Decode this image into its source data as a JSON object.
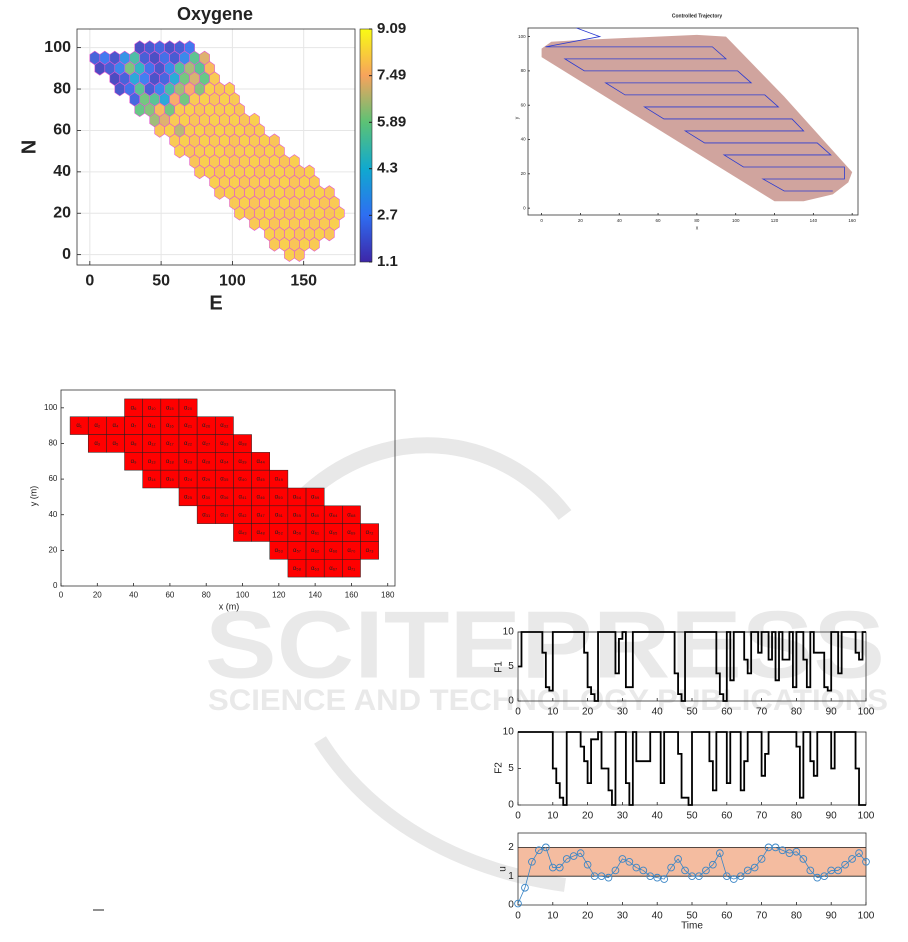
{
  "watermark": {
    "title": "SCITEPRESS",
    "subtitle": "SCIENCE AND TECHNOLOGY PUBLICATIONS"
  },
  "chart_data": [
    {
      "type": "hexmap",
      "title": "Oxygene",
      "xlabel": "E",
      "ylabel": "N",
      "xlim": [
        -9,
        186
      ],
      "ylim": [
        -5,
        109
      ],
      "xticks": [
        0,
        50,
        100,
        150
      ],
      "yticks": [
        0,
        20,
        40,
        60,
        80,
        100
      ],
      "grid": true,
      "clim": [
        1.1,
        9.09
      ],
      "cticks": [
        1.1,
        2.7,
        4.3,
        5.89,
        7.49,
        9.09
      ],
      "colormap": [
        "#3d26a8",
        "#2e6ef2",
        "#10a9cf",
        "#5cc275",
        "#f7a35c",
        "#f9fb14"
      ],
      "edgecolor": "#e05ad0",
      "rows": [
        {
          "y": 100,
          "x": 35,
          "values": [
            1.6,
            1.9,
            2.2,
            1.7,
            2.0,
            2.6
          ]
        },
        {
          "y": 95,
          "x": 3.5,
          "values": [
            2.1,
            2.6,
            1.8,
            3.4,
            5.2,
            2.0,
            1.6,
            2.4,
            1.9,
            3.1,
            5.6,
            7.2
          ]
        },
        {
          "y": 90,
          "x": 7,
          "values": [
            1.5,
            2.0,
            3.0,
            6.1,
            4.6,
            2.5,
            1.8,
            3.2,
            5.3,
            6.6,
            5.6,
            7.8
          ]
        },
        {
          "y": 85,
          "x": 17.5,
          "values": [
            1.5,
            2.1,
            4.0,
            2.8,
            1.7,
            2.2,
            4.1,
            6.0,
            7.1,
            5.8,
            8.1
          ]
        },
        {
          "y": 80,
          "x": 21,
          "values": [
            1.8,
            2.5,
            5.5,
            2.0,
            3.0,
            5.1,
            6.5,
            7.5,
            6.2,
            8.2,
            8.0,
            8.2
          ]
        },
        {
          "y": 75,
          "x": 31.5,
          "values": [
            2.2,
            6.0,
            5.5,
            4.0,
            7.5,
            6.0,
            8.1,
            8.2,
            8.0,
            8.2,
            8.1
          ]
        },
        {
          "y": 70,
          "x": 35,
          "values": [
            5.8,
            6.2,
            7.8,
            6.0,
            8.1,
            8.2,
            8.0,
            8.2,
            8.1,
            8.2,
            8.0
          ]
        },
        {
          "y": 65,
          "x": 45.5,
          "values": [
            6.5,
            7.2,
            8.1,
            8.2,
            8.0,
            8.1,
            8.2,
            8.1,
            8.2,
            8.0,
            8.2
          ]
        },
        {
          "y": 60,
          "x": 49,
          "values": [
            8.0,
            8.2,
            6.8,
            8.1,
            8.2,
            8.0,
            8.2,
            8.1,
            8.2,
            8.0,
            8.1
          ]
        },
        {
          "y": 55,
          "x": 59.5,
          "values": [
            8.1,
            8.2,
            8.0,
            8.2,
            8.1,
            8.2,
            8.0,
            8.2,
            8.1,
            8.2,
            8.0
          ]
        },
        {
          "y": 50,
          "x": 63,
          "values": [
            8.2,
            8.0,
            8.1,
            8.2,
            8.2,
            8.0,
            8.1,
            8.2,
            8.0,
            8.2,
            8.1
          ]
        },
        {
          "y": 45,
          "x": 73.5,
          "values": [
            8.0,
            8.2,
            8.1,
            8.2,
            8.0,
            8.1,
            8.2,
            8.1,
            8.2,
            8.0,
            8.2
          ]
        },
        {
          "y": 40,
          "x": 77,
          "values": [
            8.1,
            8.2,
            8.0,
            8.2,
            8.1,
            8.2,
            8.0,
            8.1,
            8.2,
            8.1,
            8.0,
            8.2
          ]
        },
        {
          "y": 35,
          "x": 87.5,
          "values": [
            8.2,
            8.1,
            8.2,
            8.0,
            8.1,
            8.2,
            8.1,
            8.2,
            8.0,
            8.2,
            8.1
          ]
        },
        {
          "y": 30,
          "x": 91,
          "values": [
            8.0,
            8.2,
            8.1,
            8.2,
            8.0,
            8.1,
            8.2,
            8.0,
            8.2,
            8.1,
            8.2,
            8.0
          ]
        },
        {
          "y": 25,
          "x": 101.5,
          "values": [
            8.1,
            8.2,
            8.0,
            8.2,
            8.1,
            8.2,
            8.0,
            8.1,
            8.2,
            8.0,
            8.1
          ]
        },
        {
          "y": 20,
          "x": 105,
          "values": [
            8.2,
            8.0,
            8.1,
            8.2,
            8.1,
            8.0,
            8.2,
            8.1,
            8.2,
            8.0,
            8.2
          ]
        },
        {
          "y": 15,
          "x": 115.5,
          "values": [
            8.1,
            8.2,
            8.0,
            8.2,
            8.1,
            8.2,
            8.0,
            8.1,
            8.2
          ]
        },
        {
          "y": 10,
          "x": 126,
          "values": [
            8.2,
            8.1,
            8.2,
            8.0,
            8.1,
            8.2,
            8.0
          ]
        },
        {
          "y": 5,
          "x": 129.5,
          "values": [
            8.1,
            8.2,
            8.0,
            8.2,
            8.1
          ]
        },
        {
          "y": 0,
          "x": 140,
          "values": [
            8.2,
            8.0
          ]
        }
      ]
    },
    {
      "type": "trajectory",
      "title": "Controlled Trajectory",
      "xlabel": "x",
      "ylabel": "y",
      "xlim": [
        -7,
        163
      ],
      "ylim": [
        -4,
        105
      ],
      "xticks": [
        0,
        20,
        40,
        60,
        80,
        100,
        120,
        140,
        160
      ],
      "yticks": [
        0,
        20,
        40,
        60,
        80,
        100
      ],
      "region": {
        "color": "#c8948d",
        "x": [
          0,
          5,
          20,
          80,
          95,
          125,
          160,
          158,
          150,
          135,
          120,
          0
        ],
        "y": [
          93,
          97,
          98,
          101,
          100,
          65,
          21,
          15,
          8,
          4,
          4,
          88
        ]
      },
      "path": {
        "color": "#2b3bd1",
        "x": [
          18,
          30,
          2,
          88,
          95,
          12,
          22,
          101,
          108,
          33,
          43,
          115,
          122,
          53,
          63,
          129,
          135,
          74,
          84,
          142,
          149,
          94,
          104,
          156,
          156,
          114,
          125,
          150
        ],
        "y": [
          105,
          100,
          94,
          94,
          87,
          87,
          80,
          80,
          73,
          73,
          66,
          66,
          59,
          59,
          52,
          52,
          45,
          45,
          38,
          38,
          31,
          31,
          24,
          24,
          17,
          17,
          10,
          10
        ]
      }
    },
    {
      "type": "cells",
      "xlabel": "x (m)",
      "ylabel": "y (m)",
      "xlim": [
        0,
        184
      ],
      "ylim": [
        0,
        110
      ],
      "xticks": [
        0,
        20,
        40,
        60,
        80,
        100,
        120,
        140,
        160,
        180
      ],
      "yticks": [
        0,
        20,
        40,
        60,
        80,
        100
      ],
      "color": "#ff0000",
      "cells": [
        {
          "x": 10,
          "y": 90,
          "label": "α₁"
        },
        {
          "x": 20,
          "y": 90,
          "label": "α₂"
        },
        {
          "x": 20,
          "y": 80,
          "label": "α₃"
        },
        {
          "x": 30,
          "y": 90,
          "label": "α₄"
        },
        {
          "x": 30,
          "y": 80,
          "label": "α₅"
        },
        {
          "x": 40,
          "y": 100,
          "label": "α₆"
        },
        {
          "x": 40,
          "y": 90,
          "label": "α₇"
        },
        {
          "x": 40,
          "y": 80,
          "label": "α₈"
        },
        {
          "x": 40,
          "y": 70,
          "label": "α₉"
        },
        {
          "x": 50,
          "y": 100,
          "label": "α₁₀"
        },
        {
          "x": 50,
          "y": 90,
          "label": "α₁₁"
        },
        {
          "x": 50,
          "y": 80,
          "label": "α₁₂"
        },
        {
          "x": 50,
          "y": 70,
          "label": "α₁₃"
        },
        {
          "x": 50,
          "y": 60,
          "label": "α₁₄"
        },
        {
          "x": 60,
          "y": 100,
          "label": "α₁₅"
        },
        {
          "x": 60,
          "y": 90,
          "label": "α₁₆"
        },
        {
          "x": 60,
          "y": 80,
          "label": "α₁₇"
        },
        {
          "x": 60,
          "y": 70,
          "label": "α₁₈"
        },
        {
          "x": 60,
          "y": 60,
          "label": "α₁₉"
        },
        {
          "x": 70,
          "y": 100,
          "label": "α₂₀"
        },
        {
          "x": 70,
          "y": 90,
          "label": "α₂₁"
        },
        {
          "x": 70,
          "y": 80,
          "label": "α₂₂"
        },
        {
          "x": 70,
          "y": 70,
          "label": "α₂₃"
        },
        {
          "x": 70,
          "y": 60,
          "label": "α₂₄"
        },
        {
          "x": 70,
          "y": 50,
          "label": "α₂₅"
        },
        {
          "x": 80,
          "y": 90,
          "label": "α₂₆"
        },
        {
          "x": 80,
          "y": 80,
          "label": "α₂₇"
        },
        {
          "x": 80,
          "y": 70,
          "label": "α₂₈"
        },
        {
          "x": 80,
          "y": 60,
          "label": "α₂₉"
        },
        {
          "x": 80,
          "y": 50,
          "label": "α₃₀"
        },
        {
          "x": 80,
          "y": 40,
          "label": "α₃₁"
        },
        {
          "x": 90,
          "y": 90,
          "label": "α₃₂"
        },
        {
          "x": 90,
          "y": 80,
          "label": "α₃₃"
        },
        {
          "x": 90,
          "y": 70,
          "label": "α₃₄"
        },
        {
          "x": 90,
          "y": 60,
          "label": "α₃₅"
        },
        {
          "x": 90,
          "y": 50,
          "label": "α₃₆"
        },
        {
          "x": 90,
          "y": 40,
          "label": "α₃₇"
        },
        {
          "x": 100,
          "y": 80,
          "label": "α₃₈"
        },
        {
          "x": 100,
          "y": 70,
          "label": "α₃₉"
        },
        {
          "x": 100,
          "y": 60,
          "label": "α₄₀"
        },
        {
          "x": 100,
          "y": 50,
          "label": "α₄₁"
        },
        {
          "x": 100,
          "y": 40,
          "label": "α₄₂"
        },
        {
          "x": 100,
          "y": 30,
          "label": "α₄₃"
        },
        {
          "x": 110,
          "y": 70,
          "label": "α₄₄"
        },
        {
          "x": 110,
          "y": 60,
          "label": "α₄₅"
        },
        {
          "x": 110,
          "y": 50,
          "label": "α₄₆"
        },
        {
          "x": 110,
          "y": 40,
          "label": "α₄₇"
        },
        {
          "x": 110,
          "y": 30,
          "label": "α₄₈"
        },
        {
          "x": 120,
          "y": 60,
          "label": "α₄₉"
        },
        {
          "x": 120,
          "y": 50,
          "label": "α₅₀"
        },
        {
          "x": 120,
          "y": 40,
          "label": "α₅₁"
        },
        {
          "x": 120,
          "y": 30,
          "label": "α₅₂"
        },
        {
          "x": 120,
          "y": 20,
          "label": "α₅₃"
        },
        {
          "x": 130,
          "y": 50,
          "label": "α₅₄"
        },
        {
          "x": 130,
          "y": 40,
          "label": "α₅₅"
        },
        {
          "x": 130,
          "y": 30,
          "label": "α₅₆"
        },
        {
          "x": 130,
          "y": 20,
          "label": "α₅₇"
        },
        {
          "x": 130,
          "y": 10,
          "label": "α₅₈"
        },
        {
          "x": 140,
          "y": 50,
          "label": "α₅₉"
        },
        {
          "x": 140,
          "y": 40,
          "label": "α₆₀"
        },
        {
          "x": 140,
          "y": 30,
          "label": "α₆₁"
        },
        {
          "x": 140,
          "y": 20,
          "label": "α₆₂"
        },
        {
          "x": 140,
          "y": 10,
          "label": "α₆₃"
        },
        {
          "x": 150,
          "y": 40,
          "label": "α₆₄"
        },
        {
          "x": 150,
          "y": 30,
          "label": "α₆₅"
        },
        {
          "x": 150,
          "y": 20,
          "label": "α₆₆"
        },
        {
          "x": 150,
          "y": 10,
          "label": "α₆₇"
        },
        {
          "x": 160,
          "y": 40,
          "label": "α₆₈"
        },
        {
          "x": 160,
          "y": 30,
          "label": "α₆₉"
        },
        {
          "x": 160,
          "y": 20,
          "label": "α₇₀"
        },
        {
          "x": 160,
          "y": 10,
          "label": "α₇₁"
        },
        {
          "x": 170,
          "y": 30,
          "label": "α₇₂"
        },
        {
          "x": 170,
          "y": 20,
          "label": "α₇₃"
        }
      ]
    },
    {
      "type": "step",
      "ylabel": "F1",
      "xlim": [
        0,
        100
      ],
      "ylim": [
        0,
        10
      ],
      "xticks": [
        0,
        10,
        20,
        30,
        40,
        50,
        60,
        70,
        80,
        90,
        100
      ],
      "yticks": [
        0,
        5,
        10
      ],
      "color": "#000000",
      "x": [
        0,
        1,
        7,
        8,
        9,
        10,
        19,
        20,
        21,
        22,
        23,
        28,
        29,
        30,
        31,
        33,
        45,
        46,
        47,
        48,
        57,
        58,
        59,
        60,
        61,
        62,
        65,
        66,
        67,
        69,
        70,
        72,
        73,
        74,
        75,
        76,
        78,
        79,
        80,
        82,
        83,
        84,
        85,
        88,
        89,
        90,
        92,
        93,
        96,
        97,
        98,
        99,
        100
      ],
      "values": [
        5,
        10,
        7,
        2,
        1.5,
        10,
        7,
        2,
        1,
        0,
        10,
        4,
        9,
        10,
        2,
        10,
        4,
        1,
        0,
        10,
        4,
        1,
        0,
        10,
        3,
        10,
        6,
        4,
        10,
        7,
        10,
        6,
        10,
        3,
        10,
        6,
        10,
        2,
        10,
        6,
        2,
        10,
        7,
        2,
        1.5,
        10,
        4,
        10,
        10,
        7,
        6,
        10,
        10
      ]
    },
    {
      "type": "step",
      "ylabel": "F2",
      "xlim": [
        0,
        100
      ],
      "ylim": [
        0,
        10
      ],
      "xticks": [
        0,
        10,
        20,
        30,
        40,
        50,
        60,
        70,
        80,
        90,
        100
      ],
      "yticks": [
        0,
        5,
        10
      ],
      "color": "#000000",
      "x": [
        0,
        10,
        11,
        12,
        13,
        14,
        18,
        19,
        20,
        21,
        23,
        24,
        26,
        27,
        28,
        31,
        32,
        33,
        34,
        38,
        41,
        42,
        46,
        47,
        49,
        50,
        55,
        56,
        57,
        60,
        61,
        64,
        65,
        66,
        70,
        71,
        72,
        75,
        80,
        81,
        82,
        84,
        85,
        86,
        90,
        91,
        97,
        98,
        100
      ],
      "values": [
        10,
        5,
        3,
        1,
        0,
        10,
        8,
        6,
        3,
        9,
        10,
        5,
        2,
        0,
        10,
        3,
        0,
        10,
        6,
        10,
        3,
        10,
        7,
        1,
        0,
        10,
        6,
        2,
        10,
        3,
        10,
        2,
        6,
        10,
        4,
        7,
        10,
        10,
        8,
        1,
        10,
        6,
        4,
        10,
        5,
        10,
        5,
        0,
        0
      ]
    },
    {
      "type": "markers",
      "ylabel": "u",
      "xlabel": "Time",
      "xlim": [
        0,
        100
      ],
      "ylim": [
        0,
        2.5
      ],
      "xticks": [
        0,
        10,
        20,
        30,
        40,
        50,
        60,
        70,
        80,
        90,
        100
      ],
      "yticks": [
        0,
        1,
        2
      ],
      "color": "#3b86c6",
      "band": [
        1,
        2
      ],
      "band_color": "#f4bca0",
      "x": [
        0,
        2,
        4,
        6,
        8,
        10,
        12,
        14,
        16,
        18,
        20,
        22,
        24,
        26,
        28,
        30,
        32,
        34,
        36,
        38,
        40,
        42,
        44,
        46,
        48,
        50,
        52,
        54,
        56,
        58,
        60,
        62,
        64,
        66,
        68,
        70,
        72,
        74,
        76,
        78,
        80,
        82,
        84,
        86,
        88,
        90,
        92,
        94,
        96,
        98,
        100
      ],
      "values": [
        0.05,
        0.6,
        1.5,
        1.9,
        2.0,
        1.3,
        1.3,
        1.6,
        1.7,
        1.8,
        1.4,
        1.0,
        1.0,
        0.95,
        1.2,
        1.6,
        1.5,
        1.3,
        1.2,
        1.0,
        0.95,
        0.9,
        1.3,
        1.6,
        1.2,
        1.0,
        1.0,
        1.2,
        1.4,
        1.8,
        1.0,
        0.9,
        1.0,
        1.2,
        1.3,
        1.6,
        2.0,
        2.0,
        1.9,
        1.8,
        1.85,
        1.6,
        1.2,
        0.95,
        1.0,
        1.2,
        1.2,
        1.4,
        1.6,
        1.8,
        1.5
      ]
    }
  ]
}
